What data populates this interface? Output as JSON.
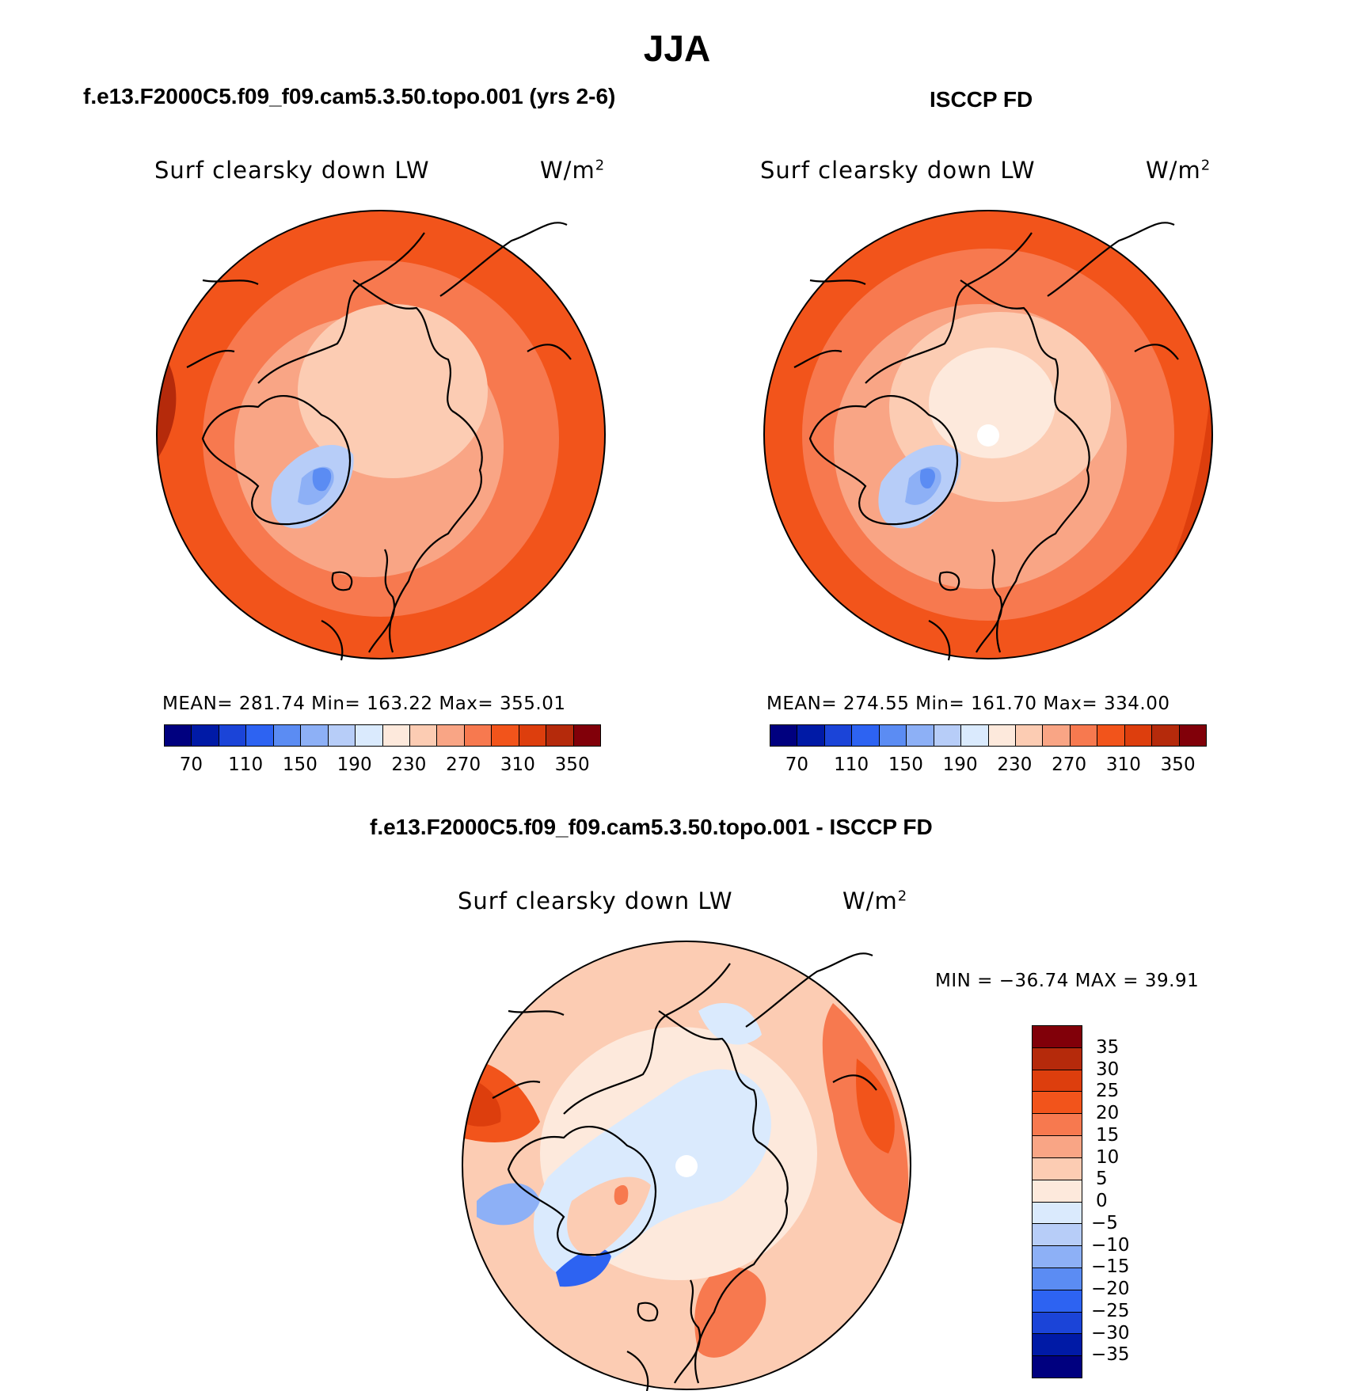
{
  "main_title": "JJA",
  "panels": [
    {
      "title": "f.e13.F2000C5.f09_f09.cam5.3.50.topo.001 (yrs 2-6)",
      "variable_label": "Surf clearsky down LW",
      "units_label": "W/m",
      "units_sup": "2",
      "stats_text": "MEAN= 281.74   Min= 163.22   Max= 355.01",
      "colorbar_ticks": [
        "70",
        "110",
        "150",
        "190",
        "230",
        "270",
        "310",
        "350"
      ],
      "colorbar_colors": [
        "#00007f",
        "#001aa6",
        "#1b44d8",
        "#2d63f2",
        "#5b8cf3",
        "#8db0f6",
        "#b7cdf8",
        "#daeafd",
        "#fde9dc",
        "#fcccb3",
        "#f9a585",
        "#f7794f",
        "#f2541b",
        "#dd3e0d",
        "#b52a0b",
        "#810009"
      ]
    },
    {
      "title": "ISCCP FD",
      "variable_label": "Surf clearsky down LW",
      "units_label": "W/m",
      "units_sup": "2",
      "stats_text": "MEAN= 274.55   Min= 161.70   Max= 334.00",
      "colorbar_ticks": [
        "70",
        "110",
        "150",
        "190",
        "230",
        "270",
        "310",
        "350"
      ],
      "colorbar_colors": [
        "#00007f",
        "#001aa6",
        "#1b44d8",
        "#2d63f2",
        "#5b8cf3",
        "#8db0f6",
        "#b7cdf8",
        "#daeafd",
        "#fde9dc",
        "#fcccb3",
        "#f9a585",
        "#f7794f",
        "#f2541b",
        "#dd3e0d",
        "#b52a0b",
        "#810009"
      ]
    },
    {
      "title": "f.e13.F2000C5.f09_f09.cam5.3.50.topo.001 - ISCCP FD",
      "variable_label": "Surf clearsky down LW",
      "units_label": "W/m",
      "units_sup": "2",
      "stats_text": "MIN = −36.74 MAX =  39.91",
      "colorbar_ticks": [
        "35",
        "30",
        "25",
        "20",
        "15",
        "10",
        "5",
        "0",
        "−5",
        "−10",
        "−15",
        "−20",
        "−25",
        "−30",
        "−35"
      ],
      "colorbar_colors": [
        "#810009",
        "#b52a0b",
        "#dd3e0d",
        "#f2541b",
        "#f7794f",
        "#f9a585",
        "#fcccb3",
        "#fde9dc",
        "#daeafd",
        "#b7cdf8",
        "#8db0f6",
        "#5b8cf3",
        "#2d63f2",
        "#1b44d8",
        "#001aa6",
        "#00007f"
      ]
    }
  ]
}
